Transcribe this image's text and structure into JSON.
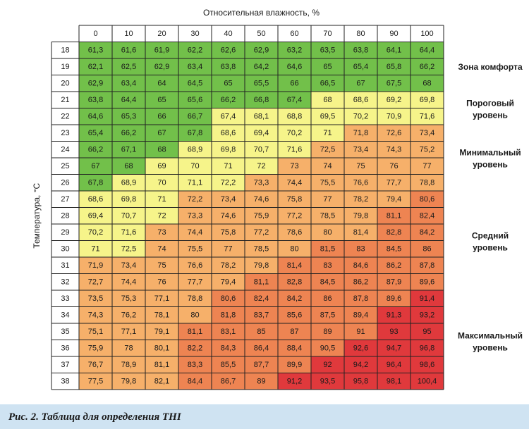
{
  "caption": "Рис. 2. Таблица для определения THI",
  "chart_data": {
    "type": "heatmap",
    "xlabel": "Относительная влажность, %",
    "ylabel": "Температура, °С",
    "x": [
      "0",
      "10",
      "20",
      "30",
      "40",
      "50",
      "60",
      "70",
      "80",
      "90",
      "100"
    ],
    "y": [
      "18",
      "19",
      "20",
      "21",
      "22",
      "23",
      "24",
      "25",
      "26",
      "27",
      "28",
      "29",
      "30",
      "31",
      "32",
      "33",
      "34",
      "35",
      "36",
      "37",
      "38"
    ],
    "values": [
      [
        "61,3",
        "61,6",
        "61,9",
        "62,2",
        "62,6",
        "62,9",
        "63,2",
        "63,5",
        "63,8",
        "64,1",
        "64,4"
      ],
      [
        "62,1",
        "62,5",
        "62,9",
        "63,4",
        "63,8",
        "64,2",
        "64,6",
        "65",
        "65,4",
        "65,8",
        "66,2"
      ],
      [
        "62,9",
        "63,4",
        "64",
        "64,5",
        "65",
        "65,5",
        "66",
        "66,5",
        "67",
        "67,5",
        "68"
      ],
      [
        "63,8",
        "64,4",
        "65",
        "65,6",
        "66,2",
        "66,8",
        "67,4",
        "68",
        "68,6",
        "69,2",
        "69,8"
      ],
      [
        "64,6",
        "65,3",
        "66",
        "66,7",
        "67,4",
        "68,1",
        "68,8",
        "69,5",
        "70,2",
        "70,9",
        "71,6"
      ],
      [
        "65,4",
        "66,2",
        "67",
        "67,8",
        "68,6",
        "69,4",
        "70,2",
        "71",
        "71,8",
        "72,6",
        "73,4"
      ],
      [
        "66,2",
        "67,1",
        "68",
        "68,9",
        "69,8",
        "70,7",
        "71,6",
        "72,5",
        "73,4",
        "74,3",
        "75,2"
      ],
      [
        "67",
        "68",
        "69",
        "70",
        "71",
        "72",
        "73",
        "74",
        "75",
        "76",
        "77"
      ],
      [
        "67,8",
        "68,9",
        "70",
        "71,1",
        "72,2",
        "73,3",
        "74,4",
        "75,5",
        "76,6",
        "77,7",
        "78,8"
      ],
      [
        "68,6",
        "69,8",
        "71",
        "72,2",
        "73,4",
        "74,6",
        "75,8",
        "77",
        "78,2",
        "79,4",
        "80,6"
      ],
      [
        "69,4",
        "70,7",
        "72",
        "73,3",
        "74,6",
        "75,9",
        "77,2",
        "78,5",
        "79,8",
        "81,1",
        "82,4"
      ],
      [
        "70,2",
        "71,6",
        "73",
        "74,4",
        "75,8",
        "77,2",
        "78,6",
        "80",
        "81,4",
        "82,8",
        "84,2"
      ],
      [
        "71",
        "72,5",
        "74",
        "75,5",
        "77",
        "78,5",
        "80",
        "81,5",
        "83",
        "84,5",
        "86"
      ],
      [
        "71,9",
        "73,4",
        "75",
        "76,6",
        "78,2",
        "79,8",
        "81,4",
        "83",
        "84,6",
        "86,2",
        "87,8"
      ],
      [
        "72,7",
        "74,4",
        "76",
        "77,7",
        "79,4",
        "81,1",
        "82,8",
        "84,5",
        "86,2",
        "87,9",
        "89,6"
      ],
      [
        "73,5",
        "75,3",
        "77,1",
        "78,8",
        "80,6",
        "82,4",
        "84,2",
        "86",
        "87,8",
        "89,6",
        "91,4"
      ],
      [
        "74,3",
        "76,2",
        "78,1",
        "80",
        "81,8",
        "83,7",
        "85,6",
        "87,5",
        "89,4",
        "91,3",
        "93,2"
      ],
      [
        "75,1",
        "77,1",
        "79,1",
        "81,1",
        "83,1",
        "85",
        "87",
        "89",
        "91",
        "93",
        "95"
      ],
      [
        "75,9",
        "78",
        "80,1",
        "82,2",
        "84,3",
        "86,4",
        "88,4",
        "90,5",
        "92,6",
        "94,7",
        "96,8"
      ],
      [
        "76,7",
        "78,9",
        "81,1",
        "83,3",
        "85,5",
        "87,7",
        "89,9",
        "92",
        "94,2",
        "96,4",
        "98,6"
      ],
      [
        "77,5",
        "79,8",
        "82,1",
        "84,4",
        "86,7",
        "89",
        "91,2",
        "93,5",
        "95,8",
        "98,1",
        "100,4"
      ]
    ],
    "zones": [
      {
        "label": "Зона комфорта",
        "color": "#72c04a"
      },
      {
        "label": "Пороговый уровень",
        "color": "#f6f48a"
      },
      {
        "label": "Минимальный уровень",
        "color": "#f6b06a"
      },
      {
        "label": "Средний уровень",
        "color": "#ee8452"
      },
      {
        "label": "Максимальный уровень",
        "color": "#e0393c"
      }
    ],
    "zone_map": [
      "00000000000",
      "00000000000",
      "00000000000",
      "00000001111",
      "00001111111",
      "00001111222",
      "00011112222",
      "00111122222",
      "01111222222",
      "11122222223",
      "11122222233",
      "11222222233",
      "11222223333",
      "22222233333",
      "22222333333",
      "22223333334",
      "22223333344",
      "22233333344",
      "22233333444",
      "22233334444",
      "22233344444"
    ]
  }
}
